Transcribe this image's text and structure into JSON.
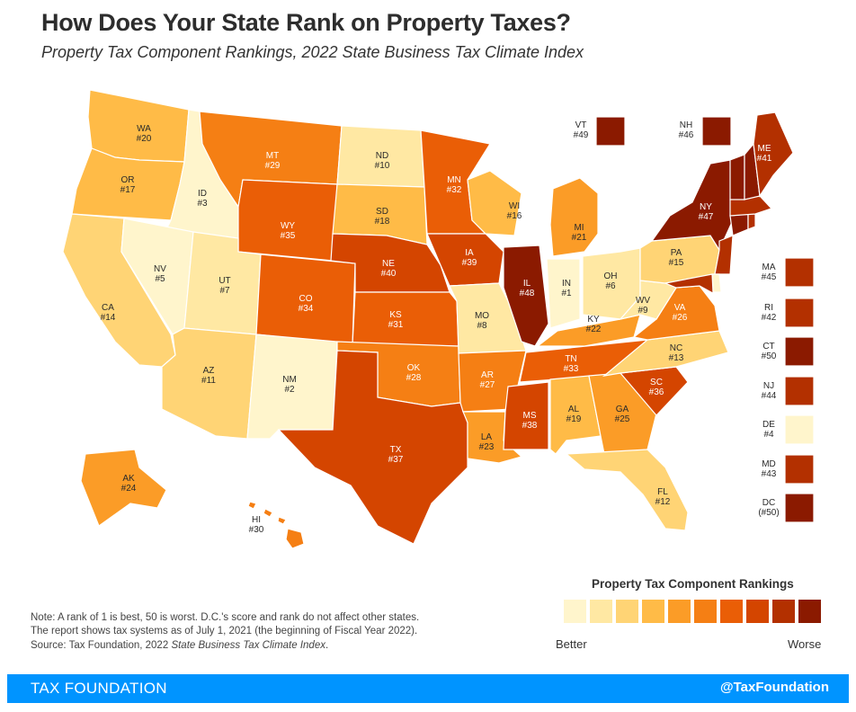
{
  "title": "How Does Your State Rank on Property Taxes?",
  "subtitle": "Property Tax Component Rankings, 2022 State Business Tax Climate Index",
  "note_line1": "Note: A rank of 1 is best, 50 is worst.  D.C.'s score and rank do not affect other states.",
  "note_line2": "The report shows tax systems as of July 1, 2021 (the beginning of Fiscal Year 2022).",
  "source_prefix": "Source: Tax Foundation, 2022 ",
  "source_italic": "State Business Tax Climate Index",
  "source_suffix": ".",
  "legend": {
    "title": "Property Tax Component Rankings",
    "low_label": "Better",
    "high_label": "Worse",
    "colors": [
      "#fff5cc",
      "#ffe8a3",
      "#ffd475",
      "#ffbb47",
      "#fb9c27",
      "#f57f14",
      "#ea5e06",
      "#d44500",
      "#b33000",
      "#8b1a00"
    ]
  },
  "footer": {
    "left": "TAX FOUNDATION",
    "right": "@TaxFoundation"
  },
  "states": {
    "WA": {
      "label": "WA",
      "rank": "#20"
    },
    "OR": {
      "label": "OR",
      "rank": "#17"
    },
    "CA": {
      "label": "CA",
      "rank": "#14"
    },
    "ID": {
      "label": "ID",
      "rank": "#3"
    },
    "NV": {
      "label": "NV",
      "rank": "#5"
    },
    "MT": {
      "label": "MT",
      "rank": "#29"
    },
    "WY": {
      "label": "WY",
      "rank": "#35"
    },
    "UT": {
      "label": "UT",
      "rank": "#7"
    },
    "AZ": {
      "label": "AZ",
      "rank": "#11"
    },
    "CO": {
      "label": "CO",
      "rank": "#34"
    },
    "NM": {
      "label": "NM",
      "rank": "#2"
    },
    "ND": {
      "label": "ND",
      "rank": "#10"
    },
    "SD": {
      "label": "SD",
      "rank": "#18"
    },
    "NE": {
      "label": "NE",
      "rank": "#40"
    },
    "KS": {
      "label": "KS",
      "rank": "#31"
    },
    "OK": {
      "label": "OK",
      "rank": "#28"
    },
    "TX": {
      "label": "TX",
      "rank": "#37"
    },
    "MN": {
      "label": "MN",
      "rank": "#32"
    },
    "IA": {
      "label": "IA",
      "rank": "#39"
    },
    "MO": {
      "label": "MO",
      "rank": "#8"
    },
    "AR": {
      "label": "AR",
      "rank": "#27"
    },
    "LA": {
      "label": "LA",
      "rank": "#23"
    },
    "WI": {
      "label": "WI",
      "rank": "#16"
    },
    "IL": {
      "label": "IL",
      "rank": "#48"
    },
    "MI": {
      "label": "MI",
      "rank": "#21"
    },
    "IN": {
      "label": "IN",
      "rank": "#1"
    },
    "OH": {
      "label": "OH",
      "rank": "#6"
    },
    "KY": {
      "label": "KY",
      "rank": "#22"
    },
    "TN": {
      "label": "TN",
      "rank": "#33"
    },
    "MS": {
      "label": "MS",
      "rank": "#38"
    },
    "AL": {
      "label": "AL",
      "rank": "#19"
    },
    "GA": {
      "label": "GA",
      "rank": "#25"
    },
    "FL": {
      "label": "FL",
      "rank": "#12"
    },
    "SC": {
      "label": "SC",
      "rank": "#36"
    },
    "NC": {
      "label": "NC",
      "rank": "#13"
    },
    "VA": {
      "label": "VA",
      "rank": "#26"
    },
    "WV": {
      "label": "WV",
      "rank": "#9"
    },
    "PA": {
      "label": "PA",
      "rank": "#15"
    },
    "NY": {
      "label": "NY",
      "rank": "#47"
    },
    "ME": {
      "label": "ME",
      "rank": "#41"
    },
    "VT": {
      "label": "VT",
      "rank": "#49"
    },
    "NH": {
      "label": "NH",
      "rank": "#46"
    },
    "MA": {
      "label": "MA",
      "rank": "#45"
    },
    "RI": {
      "label": "RI",
      "rank": "#42"
    },
    "CT": {
      "label": "CT",
      "rank": "#50"
    },
    "NJ": {
      "label": "NJ",
      "rank": "#44"
    },
    "DE": {
      "label": "DE",
      "rank": "#4"
    },
    "MD": {
      "label": "MD",
      "rank": "#43"
    },
    "DC": {
      "label": "DC",
      "rank": "(#50)"
    },
    "AK": {
      "label": "AK",
      "rank": "#24"
    },
    "HI": {
      "label": "HI",
      "rank": "#30"
    }
  }
}
